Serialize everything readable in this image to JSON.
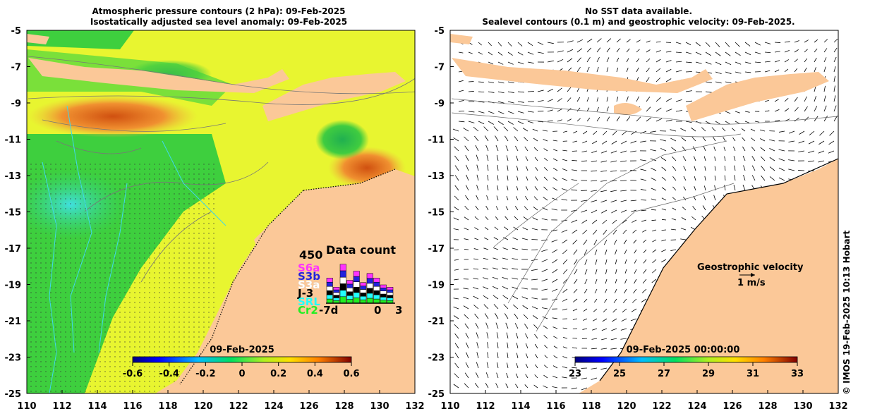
{
  "left_panel": {
    "title_line1": "Atmospheric pressure contours (2 hPa): 09-Feb-2025",
    "title_line2": "Isostatically adjusted sea level anomaly: 09-Feb-2025",
    "colorbar": {
      "date": "09-Feb-2025",
      "ticks": [
        "-0.6",
        "-0.4",
        "-0.2",
        "0",
        "0.2",
        "0.4",
        "0.6"
      ]
    },
    "data_count": {
      "title": "Data count",
      "max_label": "450",
      "satellites": [
        {
          "name": "S6a",
          "color": "#ff33ff"
        },
        {
          "name": "S3b",
          "color": "#2222dd"
        },
        {
          "name": "S3a",
          "color": "#ffffff"
        },
        {
          "name": "J-3",
          "color": "#000000"
        },
        {
          "name": "SRL",
          "color": "#22ffff"
        },
        {
          "name": "Cr2",
          "color": "#22ee22"
        }
      ],
      "x_labels": [
        "-7d",
        "0",
        "3"
      ],
      "bar_heights": [
        0.55,
        0.35,
        0.85,
        0.5,
        0.7,
        0.45,
        0.65,
        0.55,
        0.4,
        0.35
      ]
    }
  },
  "right_panel": {
    "title_line1": "No SST data available.",
    "title_line2": "Sealevel contours (0.1 m) and geostrophic velocity: 09-Feb-2025.",
    "velocity_label": "Geostrophic velocity",
    "velocity_scale": "1 m/s",
    "colorbar": {
      "date": "09-Feb-2025 00:00:00",
      "ticks": [
        "23",
        "25",
        "27",
        "29",
        "31",
        "33"
      ]
    }
  },
  "axes": {
    "lat_ticks": [
      "-5",
      "-7",
      "-9",
      "-11",
      "-13",
      "-15",
      "-17",
      "-19",
      "-21",
      "-23",
      "-25"
    ],
    "lon_ticks": [
      "110",
      "112",
      "114",
      "116",
      "118",
      "120",
      "122",
      "124",
      "126",
      "128",
      "130",
      "132"
    ]
  },
  "credit": "© IMOS 19-Feb-2025 10:13 Hobart",
  "colors": {
    "land": "#fbc898",
    "ocean_green": "#2ecc40",
    "ocean_yellow": "#d9f52a",
    "ocean_orange": "#f5a020",
    "ocean_cyan": "#40e0d0",
    "contour": "#888888",
    "bathy_cyan": "#40d8e8"
  }
}
